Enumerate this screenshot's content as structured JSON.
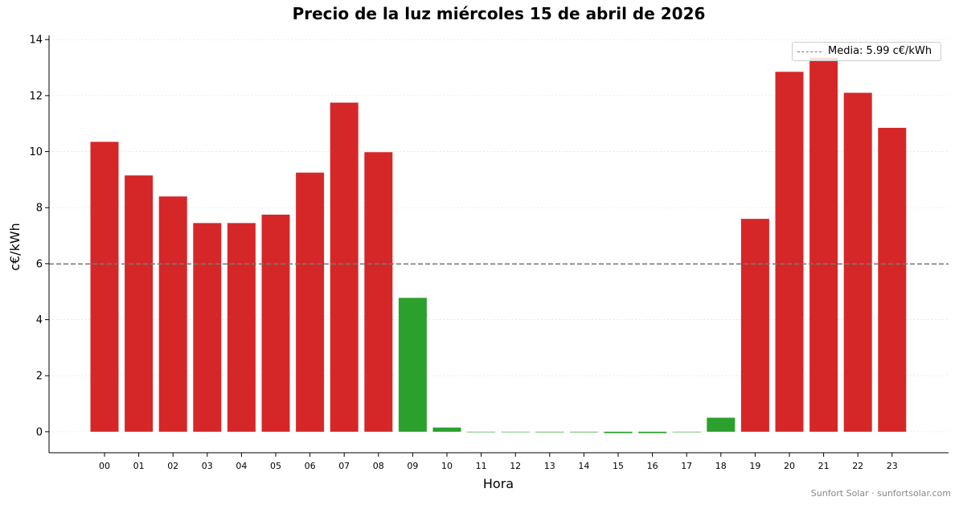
{
  "chart_data": {
    "type": "bar",
    "title": "Precio de la luz miércoles 15 de abril de 2026",
    "xlabel": "Hora",
    "ylabel": "c€/kWh",
    "categories": [
      "00",
      "01",
      "02",
      "03",
      "04",
      "05",
      "06",
      "07",
      "08",
      "09",
      "10",
      "11",
      "12",
      "13",
      "14",
      "15",
      "16",
      "17",
      "18",
      "19",
      "20",
      "21",
      "22",
      "23"
    ],
    "values": [
      10.35,
      9.15,
      8.4,
      7.45,
      7.45,
      7.75,
      9.25,
      11.75,
      9.98,
      4.78,
      0.15,
      0.0,
      0.0,
      -0.02,
      -0.02,
      -0.05,
      -0.05,
      0.0,
      0.5,
      7.6,
      12.85,
      13.35,
      12.1,
      10.85
    ],
    "ylim": [
      -0.75,
      14.15
    ],
    "yticks": [
      "0",
      "2",
      "4",
      "6",
      "8",
      "10",
      "12",
      "14"
    ],
    "grid": "horizontal dotted",
    "colors": {
      "above_mean": "#d62728",
      "below_mean": "#2ca02c",
      "mean_line": "#777777"
    },
    "mean": {
      "value": 5.99,
      "label": "Media: 5.99 c€/kWh"
    },
    "legend_position": "top-right"
  },
  "credit": "Sunfort Solar · sunfortsolar.com"
}
